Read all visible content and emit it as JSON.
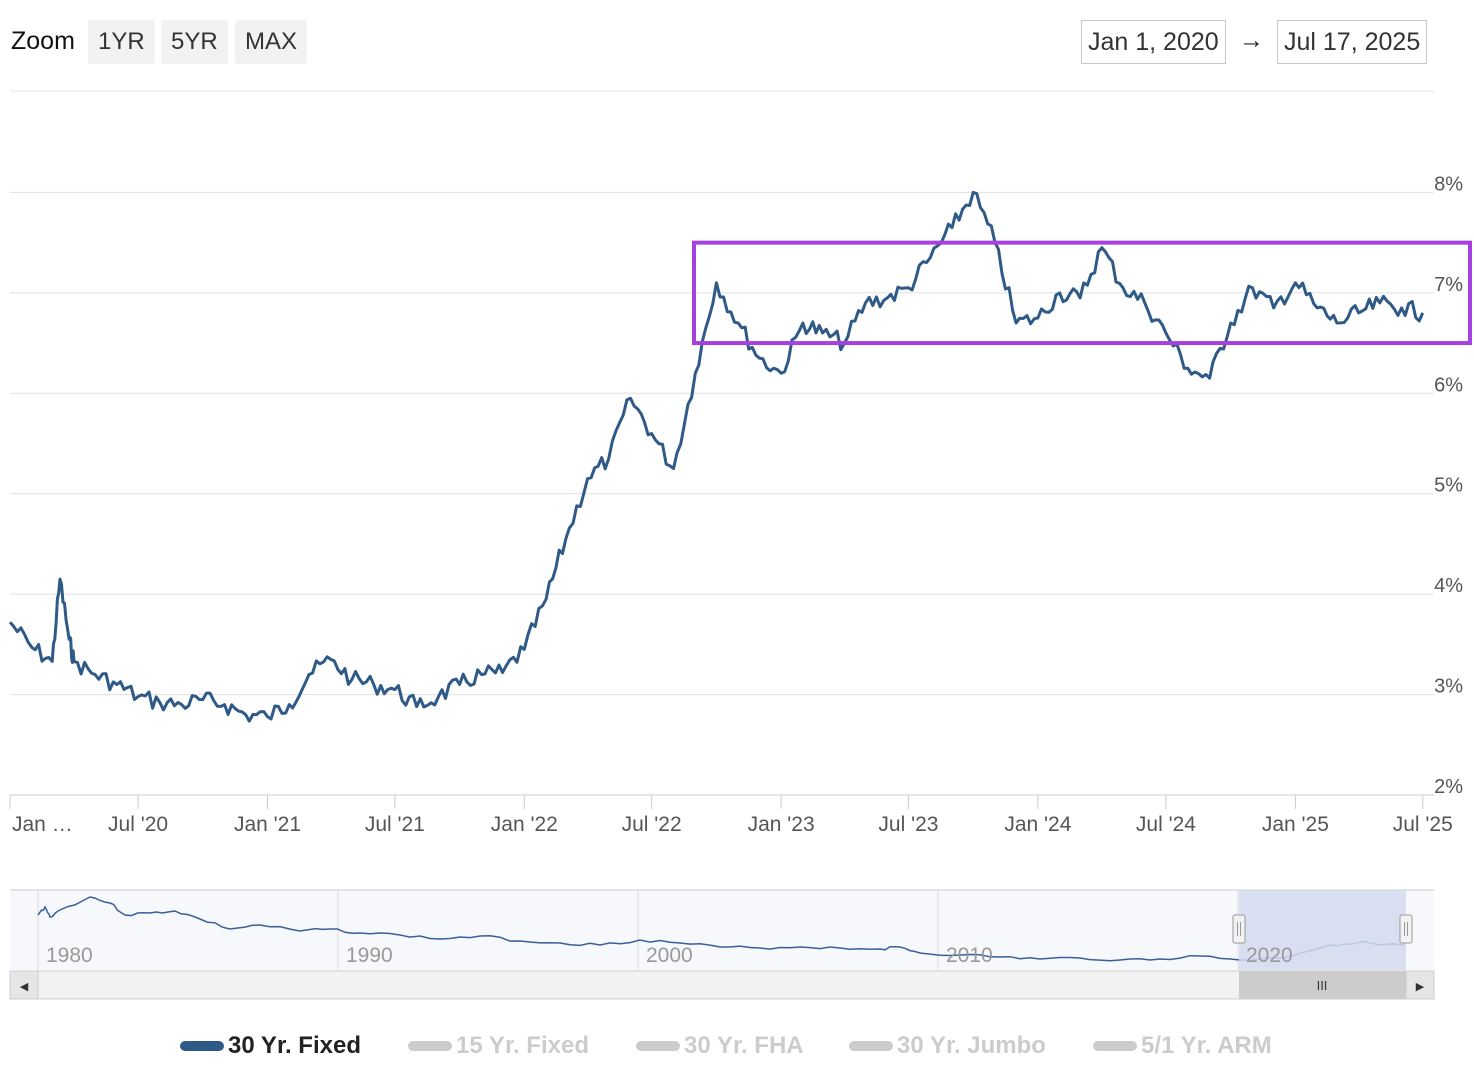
{
  "toolbar": {
    "zoom_label": "Zoom",
    "buttons": [
      "1YR",
      "5YR",
      "MAX"
    ],
    "date_from": "Jan 1, 2020",
    "arrow": "→",
    "date_to": "Jul 17, 2025"
  },
  "colors": {
    "series": "#2f5a88",
    "highlight_box": "#a640e0",
    "grid": "#e0e0e0",
    "navigator_mask": "#d4daee",
    "legend_inactive": "#cccccc"
  },
  "chart_data": {
    "type": "line",
    "y_ticks": [
      "2%",
      "3%",
      "4%",
      "5%",
      "6%",
      "7%",
      "8%"
    ],
    "ylim": [
      2,
      9
    ],
    "x_ticks": [
      "Jan …",
      "Jul '20",
      "Jan '21",
      "Jul '21",
      "Jan '22",
      "Jul '22",
      "Jan '23",
      "Jul '23",
      "Jan '24",
      "Jul '24",
      "Jan '25",
      "Jul '25"
    ],
    "x_tick_dates": [
      "2020-01",
      "2020-07",
      "2021-01",
      "2021-07",
      "2022-01",
      "2022-07",
      "2023-01",
      "2023-07",
      "2024-01",
      "2024-07",
      "2025-01",
      "2025-07"
    ],
    "xlim": [
      "2020-01-01",
      "2025-07-17"
    ],
    "highlight_range": {
      "from": "2022-09",
      "to": "2025-07",
      "ymin": 6.5,
      "ymax": 7.5
    },
    "series": [
      {
        "name": "30 Yr. Fixed",
        "points": [
          [
            "2020-01",
            3.72
          ],
          [
            "2020-02",
            3.47
          ],
          [
            "2020-03",
            3.33
          ],
          [
            "2020-03-12",
            4.15
          ],
          [
            "2020-03-25",
            3.55
          ],
          [
            "2020-04",
            3.33
          ],
          [
            "2020-05",
            3.2
          ],
          [
            "2020-06",
            3.1
          ],
          [
            "2020-07",
            2.98
          ],
          [
            "2020-08",
            2.92
          ],
          [
            "2020-09",
            2.9
          ],
          [
            "2020-10",
            2.95
          ],
          [
            "2020-11",
            2.9
          ],
          [
            "2020-12",
            2.8
          ],
          [
            "2021-01",
            2.78
          ],
          [
            "2021-02",
            2.9
          ],
          [
            "2021-03",
            3.2
          ],
          [
            "2021-04",
            3.35
          ],
          [
            "2021-05",
            3.15
          ],
          [
            "2021-06",
            3.1
          ],
          [
            "2021-07",
            3.05
          ],
          [
            "2021-08",
            2.88
          ],
          [
            "2021-09",
            2.98
          ],
          [
            "2021-10",
            3.1
          ],
          [
            "2021-11",
            3.2
          ],
          [
            "2021-12",
            3.22
          ],
          [
            "2022-01",
            3.45
          ],
          [
            "2022-02",
            3.95
          ],
          [
            "2022-03",
            4.55
          ],
          [
            "2022-04",
            5.15
          ],
          [
            "2022-05",
            5.35
          ],
          [
            "2022-06",
            5.95
          ],
          [
            "2022-07",
            5.6
          ],
          [
            "2022-08",
            5.25
          ],
          [
            "2022-09",
            6.2
          ],
          [
            "2022-10",
            7.1
          ],
          [
            "2022-11",
            6.7
          ],
          [
            "2022-12",
            6.35
          ],
          [
            "2023-01",
            6.2
          ],
          [
            "2023-02",
            6.7
          ],
          [
            "2023-03",
            6.6
          ],
          [
            "2023-04",
            6.5
          ],
          [
            "2023-05",
            6.9
          ],
          [
            "2023-06",
            6.95
          ],
          [
            "2023-07",
            7.05
          ],
          [
            "2023-08",
            7.35
          ],
          [
            "2023-09",
            7.65
          ],
          [
            "2023-10",
            8.0
          ],
          [
            "2023-11",
            7.5
          ],
          [
            "2023-12",
            6.7
          ],
          [
            "2024-01",
            6.75
          ],
          [
            "2024-02",
            7.0
          ],
          [
            "2024-03",
            6.95
          ],
          [
            "2024-04",
            7.45
          ],
          [
            "2024-05",
            7.05
          ],
          [
            "2024-06",
            6.9
          ],
          [
            "2024-07",
            6.6
          ],
          [
            "2024-08",
            6.25
          ],
          [
            "2024-09",
            6.15
          ],
          [
            "2024-10",
            6.7
          ],
          [
            "2024-11",
            7.05
          ],
          [
            "2024-12",
            6.85
          ],
          [
            "2025-01",
            7.1
          ],
          [
            "2025-02",
            6.85
          ],
          [
            "2025-03",
            6.7
          ],
          [
            "2025-04",
            6.8
          ],
          [
            "2025-05",
            6.9
          ],
          [
            "2025-06",
            6.85
          ],
          [
            "2025-07",
            6.8
          ]
        ]
      }
    ]
  },
  "navigator": {
    "year_labels": [
      "1980",
      "1990",
      "2000",
      "2010",
      "2020"
    ],
    "scrollbar_grip": "III",
    "left_arrow": "◀",
    "right_arrow": "▶"
  },
  "legend": {
    "items": [
      {
        "label": "30 Yr. Fixed",
        "active": true
      },
      {
        "label": "15 Yr. Fixed",
        "active": false
      },
      {
        "label": "30 Yr. FHA",
        "active": false
      },
      {
        "label": "30 Yr. Jumbo",
        "active": false
      },
      {
        "label": "5/1 Yr. ARM",
        "active": false
      }
    ]
  }
}
